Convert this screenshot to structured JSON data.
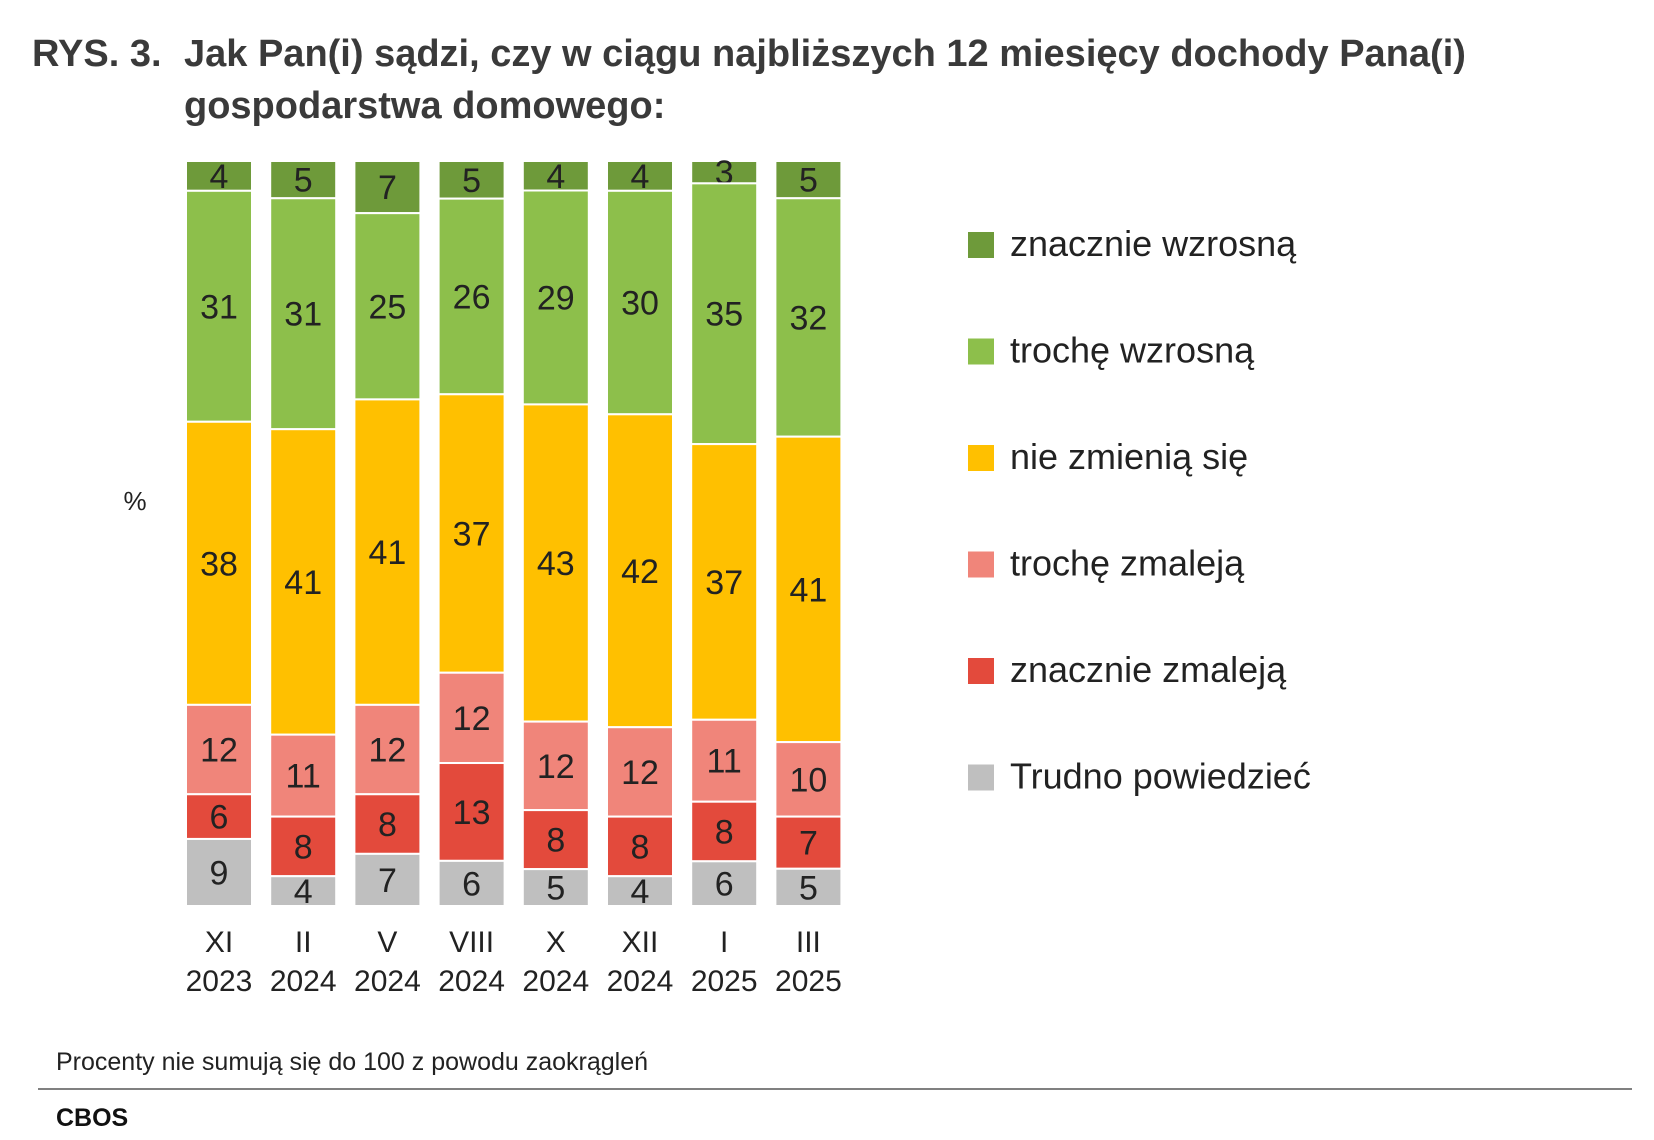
{
  "title": {
    "prefix": "RYS. 3.",
    "text": "Jak Pan(i) sądzi, czy w ciągu najbliższych 12 miesięcy dochody Pana(i) gospodarstwa domowego:"
  },
  "footnote": "Procenty nie sumują się do 100 z powodu zaokrągleń",
  "source": "CBOS",
  "chart_data": {
    "type": "bar",
    "stacked": true,
    "orientation": "vertical",
    "ylabel": "%",
    "categories": [
      [
        "XI",
        "2023"
      ],
      [
        "II",
        "2024"
      ],
      [
        "V",
        "2024"
      ],
      [
        "VIII",
        "2024"
      ],
      [
        "X",
        "2024"
      ],
      [
        "XII",
        "2024"
      ],
      [
        "I",
        "2025"
      ],
      [
        "III",
        "2025"
      ]
    ],
    "series": [
      {
        "name": "znacznie wzrosną",
        "color": "#6e9a3a",
        "values": [
          4,
          5,
          7,
          5,
          4,
          4,
          3,
          5
        ]
      },
      {
        "name": "trochę wzrosną",
        "color": "#8dbf4b",
        "values": [
          31,
          31,
          25,
          26,
          29,
          30,
          35,
          32
        ]
      },
      {
        "name": "nie zmienią się",
        "color": "#ffc000",
        "values": [
          38,
          41,
          41,
          37,
          43,
          42,
          37,
          41
        ]
      },
      {
        "name": "trochę zmaleją",
        "color": "#f0857a",
        "values": [
          12,
          11,
          12,
          12,
          12,
          12,
          11,
          10
        ]
      },
      {
        "name": "znacznie zmaleją",
        "color": "#e34a3c",
        "values": [
          6,
          8,
          8,
          13,
          8,
          8,
          8,
          7
        ]
      },
      {
        "name": "Trudno powiedzieć",
        "color": "#bfbfbf",
        "values": [
          9,
          4,
          7,
          6,
          5,
          4,
          6,
          5
        ]
      }
    ],
    "legend_position": "right",
    "grid": false
  }
}
